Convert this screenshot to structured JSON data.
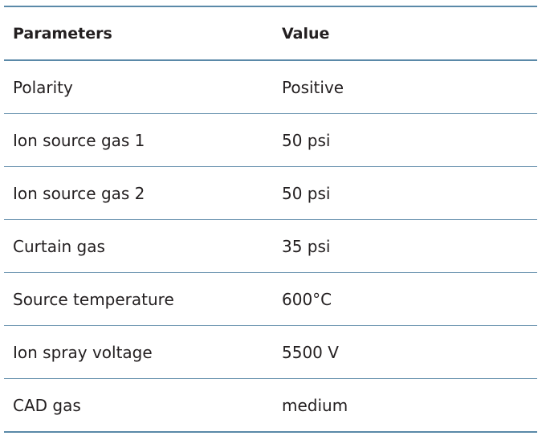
{
  "table": {
    "headers": [
      "Parameters",
      "Value"
    ],
    "rows": [
      [
        "Polarity",
        "Positive"
      ],
      [
        "Ion source gas 1",
        "50 psi"
      ],
      [
        "Ion source gas 2",
        "50 psi"
      ],
      [
        "Curtain gas",
        "35 psi"
      ],
      [
        "Source temperature",
        "600°C"
      ],
      [
        "Ion spray voltage",
        "5500 V"
      ],
      [
        "CAD gas",
        "medium"
      ]
    ]
  },
  "colors": {
    "rule": "#5a89a8",
    "text": "#231f20"
  }
}
